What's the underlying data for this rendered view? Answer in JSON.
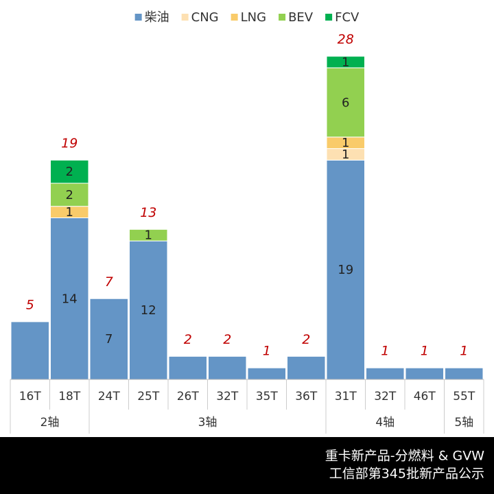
{
  "chart_data": {
    "type": "stacked-bar",
    "categories": [
      "16T",
      "18T",
      "24T",
      "25T",
      "26T",
      "32T",
      "35T",
      "36T",
      "31T",
      "32T",
      "46T",
      "55T"
    ],
    "groups": [
      {
        "label": "2轴",
        "span": 2
      },
      {
        "label": "3轴",
        "span": 6
      },
      {
        "label": "4轴",
        "span": 3
      },
      {
        "label": "5轴",
        "span": 1
      }
    ],
    "series": [
      {
        "name": "柴油",
        "color": "#6495c6",
        "values": [
          5,
          14,
          7,
          12,
          2,
          2,
          1,
          2,
          19,
          1,
          1,
          1
        ]
      },
      {
        "name": "CNG",
        "color": "#fde0b2",
        "values": [
          null,
          null,
          null,
          null,
          null,
          null,
          null,
          null,
          1,
          null,
          null,
          null
        ]
      },
      {
        "name": "LNG",
        "color": "#f9cb6a",
        "values": [
          null,
          1,
          null,
          null,
          null,
          null,
          null,
          null,
          1,
          null,
          null,
          null
        ]
      },
      {
        "name": "BEV",
        "color": "#92d050",
        "values": [
          null,
          2,
          null,
          1,
          null,
          null,
          null,
          null,
          6,
          null,
          null,
          null
        ]
      },
      {
        "name": "FCV",
        "color": "#00b050",
        "values": [
          null,
          2,
          null,
          null,
          null,
          null,
          null,
          null,
          1,
          null,
          null,
          null
        ]
      }
    ],
    "totals": [
      5,
      19,
      7,
      13,
      2,
      2,
      1,
      2,
      28,
      1,
      1,
      1
    ],
    "legend": "top",
    "footer": [
      "重卡新产品-分燃料 & GVW",
      "工信部第345批新产品公示"
    ]
  }
}
